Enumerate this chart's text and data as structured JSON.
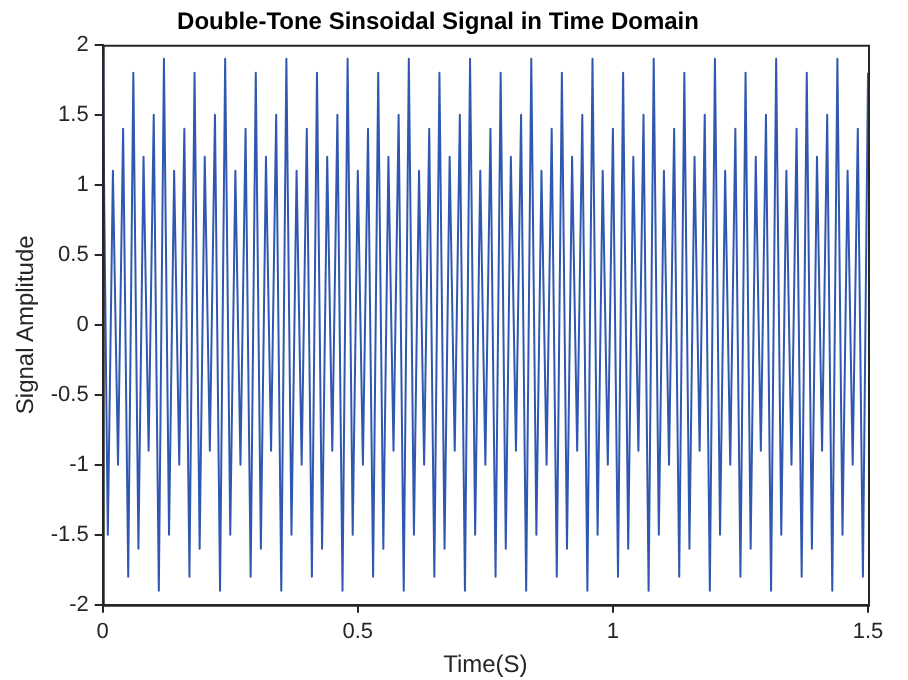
{
  "chart_data": {
    "type": "line",
    "title": "Double-Tone Sinsoidal Signal in Time Domain",
    "xlabel": "Time(S)",
    "ylabel": "Signal Amplitude",
    "x": [
      0,
      0.01,
      0.02,
      0.03,
      0.04,
      0.05,
      0.06,
      0.07,
      0.08,
      0.09,
      0.1,
      0.11,
      0.12,
      0.13,
      0.14,
      0.15,
      0.16,
      0.17,
      0.18,
      0.19,
      0.2,
      0.21,
      0.22,
      0.23,
      0.24,
      0.25,
      0.26,
      0.27,
      0.28,
      0.29,
      0.3,
      0.31,
      0.32,
      0.33,
      0.34,
      0.35,
      0.36,
      0.37,
      0.38,
      0.39,
      0.4,
      0.41,
      0.42,
      0.43,
      0.44,
      0.45,
      0.46,
      0.47,
      0.48,
      0.49,
      0.5,
      0.51,
      0.52,
      0.53,
      0.54,
      0.55,
      0.56,
      0.57,
      0.58,
      0.59,
      0.6,
      0.61,
      0.62,
      0.63,
      0.64,
      0.65,
      0.66,
      0.67,
      0.68,
      0.69,
      0.7,
      0.71,
      0.72,
      0.73,
      0.74,
      0.75,
      0.76,
      0.77,
      0.78,
      0.79,
      0.8,
      0.81,
      0.82,
      0.83,
      0.84,
      0.85,
      0.86,
      0.87,
      0.88,
      0.89,
      0.9,
      0.91,
      0.92,
      0.93,
      0.94,
      0.95,
      0.96,
      0.97,
      0.98,
      0.99,
      1,
      1.01,
      1.02,
      1.03,
      1.04,
      1.05,
      1.06,
      1.07,
      1.08,
      1.09,
      1.1,
      1.11,
      1.12,
      1.13,
      1.14,
      1.15,
      1.16,
      1.17,
      1.18,
      1.19,
      1.2,
      1.21,
      1.22,
      1.23,
      1.24,
      1.25,
      1.26,
      1.27,
      1.28,
      1.29,
      1.3,
      1.31,
      1.32,
      1.33,
      1.34,
      1.35,
      1.36,
      1.37,
      1.38,
      1.39,
      1.4,
      1.41,
      1.42,
      1.43,
      1.44,
      1.45,
      1.46,
      1.47,
      1.48,
      1.49,
      1.5
    ],
    "series": [
      {
        "color": "#3058b0",
        "values": [
          1.9,
          -1.5,
          1.1,
          -1.0,
          1.4,
          -1.8,
          1.8,
          -1.6,
          1.2,
          -0.9,
          1.5,
          -1.9,
          1.9,
          -1.5,
          1.1,
          -1.0,
          1.4,
          -1.8,
          1.8,
          -1.6,
          1.2,
          -0.9,
          1.5,
          -1.9,
          1.9,
          -1.5,
          1.1,
          -1.0,
          1.4,
          -1.8,
          1.8,
          -1.6,
          1.2,
          -0.9,
          1.5,
          -1.9,
          1.9,
          -1.5,
          1.1,
          -1.0,
          1.4,
          -1.8,
          1.8,
          -1.6,
          1.2,
          -0.9,
          1.5,
          -1.9,
          1.9,
          -1.5,
          1.1,
          -1.0,
          1.4,
          -1.8,
          1.8,
          -1.6,
          1.2,
          -0.9,
          1.5,
          -1.9,
          1.9,
          -1.5,
          1.1,
          -1.0,
          1.4,
          -1.8,
          1.8,
          -1.6,
          1.2,
          -0.9,
          1.5,
          -1.9,
          1.9,
          -1.5,
          1.1,
          -1.0,
          1.4,
          -1.8,
          1.8,
          -1.6,
          1.2,
          -0.9,
          1.5,
          -1.9,
          1.9,
          -1.5,
          1.1,
          -1.0,
          1.4,
          -1.8,
          1.8,
          -1.6,
          1.2,
          -0.9,
          1.5,
          -1.9,
          1.9,
          -1.5,
          1.1,
          -1.0,
          1.4,
          -1.8,
          1.8,
          -1.6,
          1.2,
          -0.9,
          1.5,
          -1.9,
          1.9,
          -1.5,
          1.1,
          -1.0,
          1.4,
          -1.8,
          1.8,
          -1.6,
          1.2,
          -0.9,
          1.5,
          -1.9,
          1.9,
          -1.5,
          1.1,
          -1.0,
          1.4,
          -1.8,
          1.8,
          -1.6,
          1.2,
          -0.9,
          1.5,
          -1.9,
          1.9,
          -1.5,
          1.1,
          -1.0,
          1.4,
          -1.8,
          1.8,
          -1.6,
          1.2,
          -0.9,
          1.5,
          -1.9,
          1.9,
          -1.5,
          1.1,
          -1.0,
          1.4,
          -1.8,
          1.8
        ]
      }
    ],
    "xlim": [
      0,
      1.5
    ],
    "xticks": [
      0,
      0.5,
      1,
      1.5
    ],
    "ylim": [
      -2,
      2
    ],
    "yticks": [
      -2,
      -1.5,
      -1,
      -0.5,
      0,
      0.5,
      1,
      1.5,
      2
    ],
    "grid": false,
    "legend": false,
    "marker": "none",
    "line_style": "solid"
  }
}
